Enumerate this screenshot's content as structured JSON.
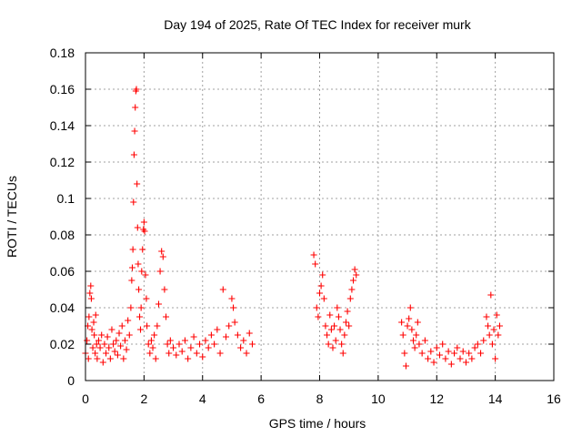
{
  "chart_data": {
    "type": "scatter",
    "title": "Day 194 of 2025, Rate Of TEC Index for receiver murk",
    "xlabel": "GPS time / hours",
    "ylabel": "ROTI / TECUs",
    "xlim": [
      0,
      16
    ],
    "ylim": [
      0,
      0.18
    ],
    "x_ticks": [
      0,
      2,
      4,
      6,
      8,
      10,
      12,
      14,
      16
    ],
    "x_tick_labels": [
      "0",
      "2",
      "4",
      "6",
      "8",
      "10",
      "12",
      "14",
      "16"
    ],
    "y_ticks": [
      0,
      0.02,
      0.04,
      0.06,
      0.08,
      0.1,
      0.12,
      0.14,
      0.16,
      0.18
    ],
    "y_tick_labels": [
      "0",
      "0.02",
      "0.04",
      "0.06",
      "0.08",
      "0.1",
      "0.12",
      "0.14",
      "0.16",
      "0.18"
    ],
    "grid": true,
    "legend": "none",
    "marker": "plus",
    "color": "#ff0000",
    "series": [
      {
        "points": [
          [
            0.0,
            0.015
          ],
          [
            0.05,
            0.022
          ],
          [
            0.08,
            0.03
          ],
          [
            0.1,
            0.012
          ],
          [
            0.12,
            0.035
          ],
          [
            0.15,
            0.048
          ],
          [
            0.18,
            0.052
          ],
          [
            0.2,
            0.045
          ],
          [
            0.22,
            0.028
          ],
          [
            0.25,
            0.018
          ],
          [
            0.28,
            0.032
          ],
          [
            0.3,
            0.025
          ],
          [
            0.33,
            0.015
          ],
          [
            0.35,
            0.036
          ],
          [
            0.38,
            0.02
          ],
          [
            0.4,
            0.012
          ],
          [
            0.45,
            0.022
          ],
          [
            0.5,
            0.018
          ],
          [
            0.55,
            0.025
          ],
          [
            0.6,
            0.01
          ],
          [
            0.65,
            0.02
          ],
          [
            0.7,
            0.015
          ],
          [
            0.75,
            0.024
          ],
          [
            0.8,
            0.018
          ],
          [
            0.85,
            0.012
          ],
          [
            0.9,
            0.028
          ],
          [
            0.95,
            0.02
          ],
          [
            1.0,
            0.016
          ],
          [
            1.05,
            0.022
          ],
          [
            1.1,
            0.014
          ],
          [
            1.15,
            0.026
          ],
          [
            1.2,
            0.019
          ],
          [
            1.25,
            0.03
          ],
          [
            1.3,
            0.012
          ],
          [
            1.35,
            0.022
          ],
          [
            1.4,
            0.017
          ],
          [
            1.45,
            0.033
          ],
          [
            1.5,
            0.025
          ],
          [
            1.55,
            0.04
          ],
          [
            1.58,
            0.055
          ],
          [
            1.6,
            0.062
          ],
          [
            1.62,
            0.072
          ],
          [
            1.64,
            0.098
          ],
          [
            1.66,
            0.124
          ],
          [
            1.68,
            0.137
          ],
          [
            1.7,
            0.15
          ],
          [
            1.72,
            0.159
          ],
          [
            1.74,
            0.16
          ],
          [
            1.76,
            0.108
          ],
          [
            1.78,
            0.084
          ],
          [
            1.8,
            0.064
          ],
          [
            1.82,
            0.05
          ],
          [
            1.85,
            0.035
          ],
          [
            1.88,
            0.028
          ],
          [
            1.9,
            0.04
          ],
          [
            1.92,
            0.06
          ],
          [
            1.95,
            0.072
          ],
          [
            1.98,
            0.083
          ],
          [
            2.0,
            0.087
          ],
          [
            2.02,
            0.082
          ],
          [
            2.05,
            0.058
          ],
          [
            2.08,
            0.045
          ],
          [
            2.1,
            0.03
          ],
          [
            2.15,
            0.02
          ],
          [
            2.2,
            0.015
          ],
          [
            2.25,
            0.022
          ],
          [
            2.3,
            0.018
          ],
          [
            2.35,
            0.025
          ],
          [
            2.4,
            0.012
          ],
          [
            2.45,
            0.03
          ],
          [
            2.5,
            0.042
          ],
          [
            2.55,
            0.06
          ],
          [
            2.6,
            0.071
          ],
          [
            2.65,
            0.068
          ],
          [
            2.7,
            0.05
          ],
          [
            2.75,
            0.035
          ],
          [
            2.8,
            0.02
          ],
          [
            2.85,
            0.015
          ],
          [
            2.9,
            0.022
          ],
          [
            3.0,
            0.018
          ],
          [
            3.1,
            0.014
          ],
          [
            3.2,
            0.02
          ],
          [
            3.3,
            0.016
          ],
          [
            3.4,
            0.022
          ],
          [
            3.5,
            0.012
          ],
          [
            3.6,
            0.018
          ],
          [
            3.7,
            0.024
          ],
          [
            3.8,
            0.015
          ],
          [
            3.9,
            0.02
          ],
          [
            4.0,
            0.013
          ],
          [
            4.1,
            0.022
          ],
          [
            4.2,
            0.018
          ],
          [
            4.3,
            0.025
          ],
          [
            4.4,
            0.02
          ],
          [
            4.5,
            0.028
          ],
          [
            4.6,
            0.015
          ],
          [
            4.7,
            0.05
          ],
          [
            4.8,
            0.024
          ],
          [
            4.9,
            0.03
          ],
          [
            5.0,
            0.045
          ],
          [
            5.05,
            0.04
          ],
          [
            5.1,
            0.032
          ],
          [
            5.2,
            0.025
          ],
          [
            5.3,
            0.018
          ],
          [
            5.4,
            0.022
          ],
          [
            5.5,
            0.015
          ],
          [
            5.6,
            0.026
          ],
          [
            5.7,
            0.02
          ],
          [
            7.8,
            0.069
          ],
          [
            7.85,
            0.064
          ],
          [
            7.9,
            0.04
          ],
          [
            7.95,
            0.035
          ],
          [
            8.0,
            0.048
          ],
          [
            8.05,
            0.052
          ],
          [
            8.1,
            0.058
          ],
          [
            8.15,
            0.045
          ],
          [
            8.2,
            0.03
          ],
          [
            8.25,
            0.025
          ],
          [
            8.3,
            0.02
          ],
          [
            8.35,
            0.036
          ],
          [
            8.4,
            0.028
          ],
          [
            8.45,
            0.018
          ],
          [
            8.5,
            0.03
          ],
          [
            8.55,
            0.022
          ],
          [
            8.6,
            0.04
          ],
          [
            8.65,
            0.035
          ],
          [
            8.7,
            0.028
          ],
          [
            8.75,
            0.02
          ],
          [
            8.8,
            0.015
          ],
          [
            8.85,
            0.025
          ],
          [
            8.9,
            0.032
          ],
          [
            8.95,
            0.038
          ],
          [
            9.0,
            0.03
          ],
          [
            9.05,
            0.045
          ],
          [
            9.1,
            0.05
          ],
          [
            9.15,
            0.055
          ],
          [
            9.2,
            0.061
          ],
          [
            9.25,
            0.058
          ],
          [
            10.8,
            0.032
          ],
          [
            10.85,
            0.025
          ],
          [
            10.9,
            0.015
          ],
          [
            10.95,
            0.008
          ],
          [
            11.0,
            0.03
          ],
          [
            11.05,
            0.034
          ],
          [
            11.1,
            0.04
          ],
          [
            11.15,
            0.028
          ],
          [
            11.2,
            0.022
          ],
          [
            11.25,
            0.018
          ],
          [
            11.3,
            0.025
          ],
          [
            11.35,
            0.032
          ],
          [
            11.4,
            0.02
          ],
          [
            11.5,
            0.015
          ],
          [
            11.6,
            0.022
          ],
          [
            11.7,
            0.012
          ],
          [
            11.8,
            0.016
          ],
          [
            11.9,
            0.01
          ],
          [
            12.0,
            0.018
          ],
          [
            12.1,
            0.014
          ],
          [
            12.2,
            0.02
          ],
          [
            12.3,
            0.012
          ],
          [
            12.4,
            0.016
          ],
          [
            12.5,
            0.009
          ],
          [
            12.6,
            0.015
          ],
          [
            12.7,
            0.018
          ],
          [
            12.8,
            0.012
          ],
          [
            12.9,
            0.016
          ],
          [
            13.0,
            0.01
          ],
          [
            13.1,
            0.015
          ],
          [
            13.2,
            0.012
          ],
          [
            13.3,
            0.018
          ],
          [
            13.4,
            0.02
          ],
          [
            13.5,
            0.015
          ],
          [
            13.6,
            0.022
          ],
          [
            13.7,
            0.035
          ],
          [
            13.75,
            0.03
          ],
          [
            13.8,
            0.025
          ],
          [
            13.85,
            0.047
          ],
          [
            13.9,
            0.02
          ],
          [
            13.95,
            0.028
          ],
          [
            14.0,
            0.012
          ],
          [
            14.05,
            0.036
          ],
          [
            14.1,
            0.025
          ],
          [
            14.15,
            0.03
          ]
        ]
      }
    ]
  }
}
